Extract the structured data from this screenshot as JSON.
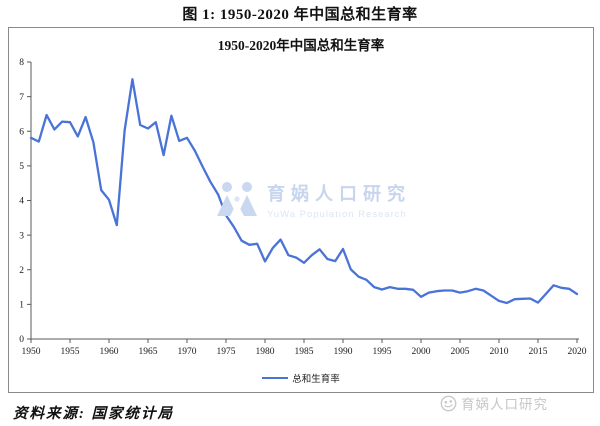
{
  "page": {
    "figure_title": "图 1: 1950-2020 年中国总和生育率",
    "source_note": "资料来源: 国家统计局",
    "brand_watermark": "育娲人口研究"
  },
  "chart": {
    "title": "1950-2020年中国总和生育率",
    "legend_label": "总和生育率",
    "watermark_cn": "育娲人口研究",
    "watermark_en": "YuWa Population Research",
    "line_color": "#4a73d8",
    "axis_color": "#595959",
    "watermark_color": "#c9d7f0"
  },
  "chart_data": {
    "type": "line",
    "title": "1950-2020年中国总和生育率",
    "xlabel": "",
    "ylabel": "",
    "xlim": [
      1950,
      2020
    ],
    "ylim": [
      0,
      8
    ],
    "x_ticks": [
      1950,
      1955,
      1960,
      1965,
      1970,
      1975,
      1980,
      1985,
      1990,
      1995,
      2000,
      2005,
      2010,
      2015,
      2020
    ],
    "y_ticks": [
      0,
      1,
      2,
      3,
      4,
      5,
      6,
      7,
      8
    ],
    "grid": false,
    "legend_position": "bottom",
    "series": [
      {
        "name": "总和生育率",
        "color": "#4a73d8",
        "x": [
          1950,
          1951,
          1952,
          1953,
          1954,
          1955,
          1956,
          1957,
          1958,
          1959,
          1960,
          1961,
          1962,
          1963,
          1964,
          1965,
          1966,
          1967,
          1968,
          1969,
          1970,
          1971,
          1972,
          1973,
          1974,
          1975,
          1976,
          1977,
          1978,
          1979,
          1980,
          1981,
          1982,
          1983,
          1984,
          1985,
          1986,
          1987,
          1988,
          1989,
          1990,
          1991,
          1992,
          1993,
          1994,
          1995,
          1996,
          1997,
          1998,
          1999,
          2000,
          2001,
          2002,
          2003,
          2004,
          2005,
          2006,
          2007,
          2008,
          2009,
          2010,
          2011,
          2012,
          2013,
          2014,
          2015,
          2016,
          2017,
          2018,
          2019,
          2020
        ],
        "values": [
          5.81,
          5.7,
          6.47,
          6.05,
          6.28,
          6.26,
          5.85,
          6.41,
          5.68,
          4.3,
          4.02,
          3.29,
          6.02,
          7.5,
          6.18,
          6.08,
          6.26,
          5.31,
          6.45,
          5.72,
          5.81,
          5.44,
          4.98,
          4.54,
          4.17,
          3.57,
          3.24,
          2.84,
          2.72,
          2.75,
          2.24,
          2.63,
          2.87,
          2.42,
          2.35,
          2.2,
          2.42,
          2.59,
          2.31,
          2.25,
          2.6,
          2.01,
          1.8,
          1.71,
          1.5,
          1.43,
          1.5,
          1.45,
          1.45,
          1.42,
          1.22,
          1.34,
          1.38,
          1.4,
          1.4,
          1.34,
          1.38,
          1.45,
          1.4,
          1.25,
          1.1,
          1.04,
          1.15,
          1.16,
          1.17,
          1.05,
          1.3,
          1.55,
          1.48,
          1.45,
          1.3
        ]
      }
    ]
  }
}
